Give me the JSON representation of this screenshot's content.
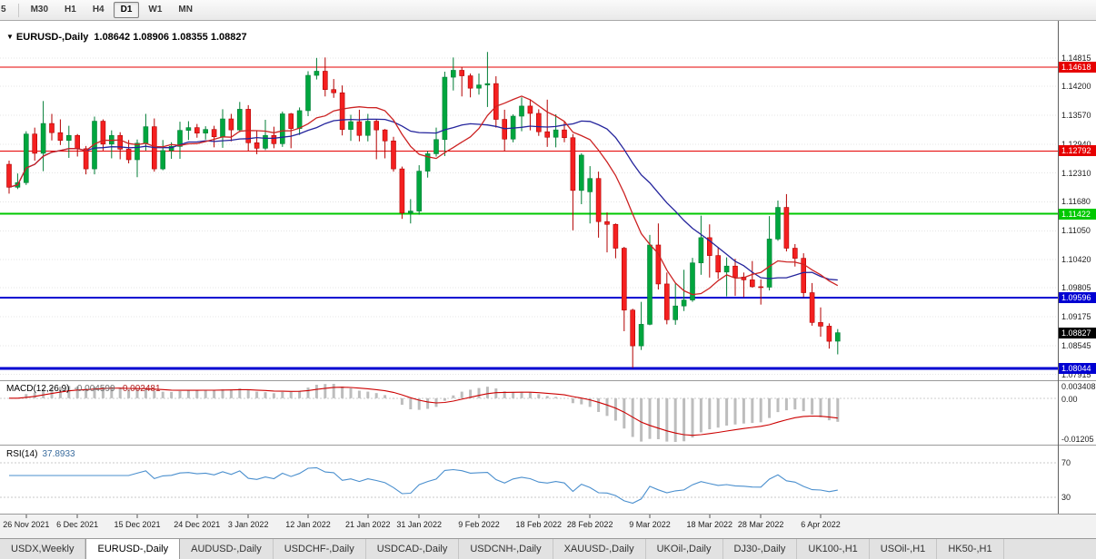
{
  "toolbar": {
    "timeframes": [
      "5",
      "M30",
      "H1",
      "H4",
      "D1",
      "W1",
      "MN"
    ],
    "active": "D1"
  },
  "chart_data": {
    "type": "candlestick",
    "title": "EURUSD-,Daily",
    "ohlc_text": "1.08642 1.08906 1.08355 1.08827",
    "ohlc_display": {
      "open": "1.08642",
      "high": "1.08906",
      "low": "1.08355",
      "close": "1.08827"
    },
    "colors": {
      "bull": "#00a63e",
      "bull_border": "#007d36",
      "bear": "#f42020",
      "bear_border": "#b30000",
      "ma_fast": "#cc2222",
      "ma_slow": "#24249c",
      "macd_hist": "#bdbdbd",
      "macd_signal": "#cc0000",
      "rsi_line": "#4a8fce",
      "grid": "#e4e4e4"
    },
    "y_axis_ticks": [
      "1.14815",
      "1.14200",
      "1.13570",
      "1.12940",
      "1.12310",
      "1.11680",
      "1.11050",
      "1.10420",
      "1.09805",
      "1.09175",
      "1.08545",
      "1.07915"
    ],
    "levels": [
      {
        "value": 1.14618,
        "label": "1.14618",
        "color": "#e60000",
        "width": 1
      },
      {
        "value": 1.12792,
        "label": "1.12792",
        "color": "#e60000",
        "width": 1
      },
      {
        "value": 1.11422,
        "label": "1.11422",
        "color": "#00c800",
        "width": 2
      },
      {
        "value": 1.09596,
        "label": "1.09596",
        "color": "#0000d2",
        "width": 2
      },
      {
        "value": 1.08044,
        "label": "1.08044",
        "color": "#0000d2",
        "width": 3
      }
    ],
    "current_price": {
      "value": 1.08827,
      "label": "1.08827",
      "color": "#000000"
    },
    "moving_averages": [
      {
        "name": "ma-fast",
        "period": 10,
        "color": "#cc2222"
      },
      {
        "name": "ma-slow",
        "period": 20,
        "color": "#24249c"
      }
    ],
    "indicators": {
      "macd": {
        "label": "MACD(12,26,9)",
        "value_main": "-0.004599",
        "value_signal": "-0.002481",
        "axis_labels": [
          "0.003408",
          "0.00",
          "-0.01205"
        ],
        "params": [
          12,
          26,
          9
        ]
      },
      "rsi": {
        "label": "RSI(14)",
        "value": "37.8933",
        "period": 14,
        "levels": [
          "70",
          "30"
        ]
      }
    },
    "x_axis_labels": [
      {
        "index": 2,
        "label": "26 Nov 2021"
      },
      {
        "index": 8,
        "label": "6 Dec 2021"
      },
      {
        "index": 15,
        "label": "15 Dec 2021"
      },
      {
        "index": 22,
        "label": "24 Dec 2021"
      },
      {
        "index": 28,
        "label": "3 Jan 2022"
      },
      {
        "index": 35,
        "label": "12 Jan 2022"
      },
      {
        "index": 42,
        "label": "21 Jan 2022"
      },
      {
        "index": 48,
        "label": "31 Jan 2022"
      },
      {
        "index": 55,
        "label": "9 Feb 2022"
      },
      {
        "index": 62,
        "label": "18 Feb 2022"
      },
      {
        "index": 68,
        "label": "28 Feb 2022"
      },
      {
        "index": 75,
        "label": "9 Mar 2022"
      },
      {
        "index": 82,
        "label": "18 Mar 2022"
      },
      {
        "index": 88,
        "label": "28 Mar 2022"
      },
      {
        "index": 95,
        "label": "6 Apr 2022"
      }
    ],
    "dates": [
      "2021-11-24",
      "2021-11-25",
      "2021-11-26",
      "2021-11-29",
      "2021-11-30",
      "2021-12-01",
      "2021-12-02",
      "2021-12-03",
      "2021-12-06",
      "2021-12-07",
      "2021-12-08",
      "2021-12-09",
      "2021-12-10",
      "2021-12-13",
      "2021-12-14",
      "2021-12-15",
      "2021-12-16",
      "2021-12-17",
      "2021-12-20",
      "2021-12-21",
      "2021-12-22",
      "2021-12-23",
      "2021-12-24",
      "2021-12-27",
      "2021-12-28",
      "2021-12-29",
      "2021-12-30",
      "2021-12-31",
      "2022-01-03",
      "2022-01-04",
      "2022-01-05",
      "2022-01-06",
      "2022-01-07",
      "2022-01-10",
      "2022-01-11",
      "2022-01-12",
      "2022-01-13",
      "2022-01-14",
      "2022-01-17",
      "2022-01-18",
      "2022-01-19",
      "2022-01-20",
      "2022-01-21",
      "2022-01-24",
      "2022-01-25",
      "2022-01-26",
      "2022-01-27",
      "2022-01-28",
      "2022-01-31",
      "2022-02-01",
      "2022-02-02",
      "2022-02-03",
      "2022-02-04",
      "2022-02-07",
      "2022-02-08",
      "2022-02-09",
      "2022-02-10",
      "2022-02-11",
      "2022-02-14",
      "2022-02-15",
      "2022-02-16",
      "2022-02-17",
      "2022-02-18",
      "2022-02-21",
      "2022-02-22",
      "2022-02-23",
      "2022-02-24",
      "2022-02-25",
      "2022-02-28",
      "2022-03-01",
      "2022-03-02",
      "2022-03-03",
      "2022-03-04",
      "2022-03-07",
      "2022-03-08",
      "2022-03-09",
      "2022-03-10",
      "2022-03-11",
      "2022-03-14",
      "2022-03-15",
      "2022-03-16",
      "2022-03-17",
      "2022-03-18",
      "2022-03-21",
      "2022-03-22",
      "2022-03-23",
      "2022-03-24",
      "2022-03-25",
      "2022-03-28",
      "2022-03-29",
      "2022-03-30",
      "2022-03-31",
      "2022-04-01",
      "2022-04-04",
      "2022-04-05",
      "2022-04-06",
      "2022-04-07",
      "2022-04-08"
    ],
    "candles": [
      [
        1.125,
        1.1258,
        1.1186,
        1.12
      ],
      [
        1.12,
        1.123,
        1.1196,
        1.121
      ],
      [
        1.121,
        1.1322,
        1.1205,
        1.1316
      ],
      [
        1.1316,
        1.133,
        1.1258,
        1.1274
      ],
      [
        1.1274,
        1.1388,
        1.1235,
        1.1339
      ],
      [
        1.1339,
        1.136,
        1.1302,
        1.1319
      ],
      [
        1.1319,
        1.1348,
        1.1292,
        1.1302
      ],
      [
        1.1302,
        1.1334,
        1.1264,
        1.1313
      ],
      [
        1.1313,
        1.1316,
        1.1267,
        1.1284
      ],
      [
        1.1284,
        1.129,
        1.1228,
        1.124
      ],
      [
        1.124,
        1.1354,
        1.1228,
        1.1344
      ],
      [
        1.1344,
        1.1348,
        1.128,
        1.1294
      ],
      [
        1.1294,
        1.1324,
        1.1263,
        1.1313
      ],
      [
        1.1313,
        1.132,
        1.1261,
        1.1283
      ],
      [
        1.1283,
        1.1303,
        1.1252,
        1.126
      ],
      [
        1.126,
        1.1304,
        1.1222,
        1.1296
      ],
      [
        1.1296,
        1.136,
        1.128,
        1.1332
      ],
      [
        1.1332,
        1.135,
        1.1234,
        1.124
      ],
      [
        1.124,
        1.1303,
        1.1237,
        1.128
      ],
      [
        1.128,
        1.1298,
        1.1262,
        1.1289
      ],
      [
        1.1289,
        1.1343,
        1.1262,
        1.1324
      ],
      [
        1.1324,
        1.1344,
        1.1303,
        1.133
      ],
      [
        1.133,
        1.1338,
        1.1308,
        1.1318
      ],
      [
        1.1318,
        1.1333,
        1.1304,
        1.1326
      ],
      [
        1.1326,
        1.1334,
        1.1287,
        1.131
      ],
      [
        1.131,
        1.137,
        1.1286,
        1.1349
      ],
      [
        1.1349,
        1.136,
        1.13,
        1.1325
      ],
      [
        1.1325,
        1.1386,
        1.132,
        1.137
      ],
      [
        1.137,
        1.1379,
        1.1279,
        1.1297
      ],
      [
        1.1297,
        1.1323,
        1.1272,
        1.1285
      ],
      [
        1.1285,
        1.1347,
        1.1281,
        1.1313
      ],
      [
        1.1313,
        1.1332,
        1.1285,
        1.1295
      ],
      [
        1.1295,
        1.1365,
        1.1288,
        1.136
      ],
      [
        1.136,
        1.1362,
        1.1285,
        1.1328
      ],
      [
        1.1328,
        1.1374,
        1.1314,
        1.1367
      ],
      [
        1.1367,
        1.1453,
        1.1355,
        1.1444
      ],
      [
        1.1444,
        1.1482,
        1.1435,
        1.1453
      ],
      [
        1.1453,
        1.1483,
        1.1398,
        1.1413
      ],
      [
        1.1413,
        1.1436,
        1.1395,
        1.1406
      ],
      [
        1.1406,
        1.1422,
        1.1313,
        1.1326
      ],
      [
        1.1326,
        1.1358,
        1.1301,
        1.1343
      ],
      [
        1.1343,
        1.1369,
        1.13,
        1.1313
      ],
      [
        1.1313,
        1.136,
        1.13,
        1.1344
      ],
      [
        1.1344,
        1.1349,
        1.1261,
        1.1325
      ],
      [
        1.1325,
        1.1327,
        1.1263,
        1.1301
      ],
      [
        1.1301,
        1.131,
        1.1234,
        1.124
      ],
      [
        1.124,
        1.1245,
        1.1131,
        1.1144
      ],
      [
        1.1144,
        1.1174,
        1.1121,
        1.1148
      ],
      [
        1.1148,
        1.1248,
        1.114,
        1.1235
      ],
      [
        1.1235,
        1.1279,
        1.1221,
        1.1273
      ],
      [
        1.1273,
        1.133,
        1.1267,
        1.1304
      ],
      [
        1.1304,
        1.1452,
        1.1268,
        1.144
      ],
      [
        1.144,
        1.1483,
        1.1411,
        1.1455
      ],
      [
        1.1455,
        1.1462,
        1.1398,
        1.1443
      ],
      [
        1.1443,
        1.1448,
        1.1396,
        1.1416
      ],
      [
        1.1416,
        1.1448,
        1.1402,
        1.1423
      ],
      [
        1.1423,
        1.1495,
        1.1375,
        1.1426
      ],
      [
        1.1426,
        1.1442,
        1.133,
        1.1348
      ],
      [
        1.1348,
        1.1369,
        1.1278,
        1.1305
      ],
      [
        1.1305,
        1.1359,
        1.1298,
        1.1355
      ],
      [
        1.1355,
        1.1396,
        1.1322,
        1.1377
      ],
      [
        1.1377,
        1.1392,
        1.1324,
        1.1361
      ],
      [
        1.1361,
        1.137,
        1.1312,
        1.1321
      ],
      [
        1.1321,
        1.1391,
        1.1288,
        1.1309
      ],
      [
        1.1309,
        1.1359,
        1.1287,
        1.1325
      ],
      [
        1.1325,
        1.1343,
        1.1298,
        1.1308
      ],
      [
        1.1308,
        1.1316,
        1.1106,
        1.1193
      ],
      [
        1.1193,
        1.1274,
        1.1163,
        1.127
      ],
      [
        1.119,
        1.1246,
        1.1121,
        1.1219
      ],
      [
        1.1219,
        1.1234,
        1.109,
        1.1125
      ],
      [
        1.1125,
        1.1145,
        1.1058,
        1.1119
      ],
      [
        1.1119,
        1.1121,
        1.1045,
        1.1067
      ],
      [
        1.1067,
        1.107,
        1.0886,
        1.0932
      ],
      [
        1.0932,
        1.0935,
        1.0806,
        1.0854
      ],
      [
        1.0854,
        1.095,
        1.0845,
        1.0901
      ],
      [
        1.0901,
        1.1096,
        1.0899,
        1.1074
      ],
      [
        1.1074,
        1.1121,
        1.0977,
        1.0989
      ],
      [
        1.0989,
        1.1014,
        1.0901,
        1.0911
      ],
      [
        1.0911,
        1.099,
        1.09,
        1.0941
      ],
      [
        1.0941,
        1.102,
        1.093,
        1.0954
      ],
      [
        1.0954,
        1.1046,
        1.095,
        1.1035
      ],
      [
        1.1035,
        1.1138,
        1.1009,
        1.109
      ],
      [
        1.109,
        1.1119,
        1.1003,
        1.1051
      ],
      [
        1.1051,
        1.1069,
        1.1,
        1.1015
      ],
      [
        1.1015,
        1.1047,
        1.0962,
        1.1028
      ],
      [
        1.1028,
        1.1044,
        1.0963,
        1.1004
      ],
      [
        1.1004,
        1.1014,
        1.096,
        1.0998
      ],
      [
        1.0998,
        1.1039,
        1.0981,
        1.0983
      ],
      [
        1.0983,
        1.0999,
        1.0944,
        1.0982
      ],
      [
        1.0982,
        1.1137,
        1.0975,
        1.1087
      ],
      [
        1.1087,
        1.1171,
        1.1083,
        1.1156
      ],
      [
        1.1156,
        1.1185,
        1.106,
        1.1067
      ],
      [
        1.1067,
        1.1076,
        1.1027,
        1.1045
      ],
      [
        1.1045,
        1.1056,
        1.096,
        1.097
      ],
      [
        1.097,
        1.0991,
        1.0898,
        1.0905
      ],
      [
        1.0905,
        1.0938,
        1.0874,
        1.0897
      ],
      [
        1.0897,
        1.0903,
        1.0848,
        1.0864
      ],
      [
        1.08642,
        1.08906,
        1.08355,
        1.08827
      ]
    ]
  },
  "tabbar": {
    "tabs": [
      "USDX,Weekly",
      "EURUSD-,Daily",
      "AUDUSD-,Daily",
      "USDCHF-,Daily",
      "USDCAD-,Daily",
      "USDCNH-,Daily",
      "XAUUSD-,Daily",
      "UKOil-,Daily",
      "DJ30-,Daily",
      "UK100-,H1",
      "USOil-,H1",
      "HK50-,H1"
    ],
    "active": "EURUSD-,Daily"
  }
}
